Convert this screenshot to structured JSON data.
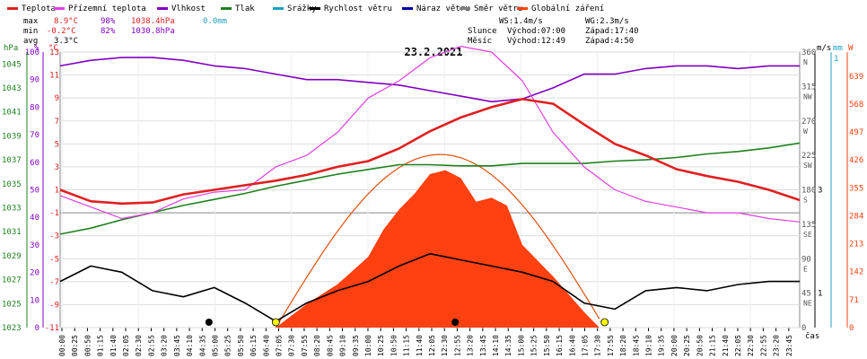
{
  "chart_data": {
    "type": "line",
    "title": "23.2.2021",
    "legend": [
      {
        "label": "Teplota",
        "color": "#e02020"
      },
      {
        "label": "Přízemní teplota",
        "color": "#e040e0"
      },
      {
        "label": "Vlhkost",
        "color": "#8000c0"
      },
      {
        "label": "Tlak",
        "color": "#208020"
      },
      {
        "label": "Srážky",
        "color": "#20a0c0"
      },
      {
        "label": "Rychlost větru",
        "color": "#000000"
      },
      {
        "label": "Náraz větru",
        "color": "#0000a0"
      },
      {
        "label": "Směr větru",
        "color": "#808080"
      },
      {
        "label": "Globální záření",
        "color": "#ff4010"
      }
    ],
    "stats": {
      "max_label": "max",
      "min_label": "min",
      "avg_label": "avg",
      "max": {
        "temp": "8.9°C",
        "hum": "98%",
        "press": "1038.4hPa",
        "rain": "0.0mm"
      },
      "min": {
        "temp": "-0.2°C",
        "hum": "82%",
        "press": "1030.8hPa"
      },
      "avg": {
        "temp": "3.3°C"
      },
      "ws": "WS:1.4m/s",
      "wg": "WG:2.3m/s",
      "sun": {
        "label": "Slunce",
        "rise": "Východ:07:00",
        "set": "Západ:17:40"
      },
      "moon": {
        "label": "Měsíc",
        "rise": "Východ:12:49",
        "set": "Západ:4:50"
      }
    },
    "axes": {
      "hPa": {
        "unit": "hPa",
        "ticks": [
          "1045",
          "1043",
          "1041",
          "1039",
          "1037",
          "1035",
          "1033",
          "1031",
          "1029",
          "1027",
          "1025",
          "1023"
        ],
        "range": [
          1023,
          1046
        ]
      },
      "pct": {
        "unit": "%",
        "ticks": [
          "100",
          "90",
          "80",
          "70",
          "60",
          "50",
          "40",
          "30",
          "20",
          "10",
          "0"
        ],
        "range": [
          0,
          100
        ]
      },
      "degC": {
        "unit": "°C",
        "ticks": [
          "13",
          "11",
          "9",
          "7",
          "5",
          "3",
          "1",
          "-1",
          "-3",
          "-5",
          "-7",
          "-9",
          "-11"
        ],
        "range": [
          -11,
          13
        ]
      },
      "dir": {
        "ticks": [
          "360",
          "315",
          "270",
          "225",
          "180",
          "135",
          "90",
          "45",
          "0"
        ],
        "letters": [
          "N",
          "NW",
          "W",
          "SW",
          "S",
          "SE",
          "E",
          "NE"
        ],
        "range": [
          0,
          360
        ]
      },
      "ms": {
        "unit": "m/s",
        "ticks": [
          "3",
          "1"
        ]
      },
      "mm": {
        "unit": "mm",
        "ticks": [
          "1"
        ]
      },
      "W": {
        "unit": "W",
        "ticks": [
          "639",
          "568",
          "497",
          "426",
          "355",
          "284",
          "213",
          "142",
          "71",
          "0"
        ],
        "range": [
          0,
          700
        ]
      },
      "x_label": "čas",
      "x_ticks": [
        "00:00",
        "00:25",
        "00:50",
        "01:15",
        "01:40",
        "02:05",
        "02:30",
        "02:55",
        "03:20",
        "03:45",
        "04:10",
        "04:35",
        "05:00",
        "05:25",
        "05:50",
        "06:15",
        "06:40",
        "07:05",
        "07:30",
        "07:55",
        "08:20",
        "08:45",
        "09:10",
        "09:35",
        "10:00",
        "10:25",
        "10:50",
        "11:15",
        "11:40",
        "12:05",
        "12:30",
        "12:55",
        "13:20",
        "13:45",
        "14:10",
        "14:35",
        "15:00",
        "15:25",
        "15:50",
        "16:15",
        "16:40",
        "17:05",
        "17:30",
        "17:55",
        "18:20",
        "18:45",
        "19:10",
        "19:35",
        "20:00",
        "20:25",
        "20:50",
        "21:15",
        "21:40",
        "22:05",
        "22:30",
        "22:55",
        "23:20",
        "23:45"
      ]
    },
    "series": [
      {
        "name": "Teplota",
        "unit": "°C",
        "x_hours": [
          0,
          1,
          2,
          3,
          4,
          5,
          6,
          7,
          8,
          9,
          10,
          11,
          12,
          13,
          14,
          15,
          16,
          17,
          18,
          19,
          20,
          21,
          22,
          23,
          24
        ],
        "values": [
          1.0,
          0.0,
          -0.2,
          -0.1,
          0.6,
          1.0,
          1.4,
          1.8,
          2.3,
          3.0,
          3.5,
          4.6,
          6.1,
          7.3,
          8.2,
          8.9,
          8.5,
          6.7,
          5.0,
          4.0,
          2.8,
          2.2,
          1.7,
          1.0,
          0.1
        ]
      },
      {
        "name": "Přízemní teplota",
        "unit": "°C",
        "x_hours": [
          0,
          1,
          2,
          3,
          4,
          5,
          6,
          7,
          8,
          9,
          10,
          11,
          12,
          13,
          14,
          15,
          16,
          17,
          18,
          19,
          20,
          21,
          22,
          23,
          24
        ],
        "values": [
          0.5,
          -0.5,
          -1.5,
          -1.0,
          0.2,
          0.8,
          1.0,
          3.0,
          4.0,
          6.0,
          9.0,
          10.5,
          12.5,
          13.5,
          13.0,
          10.5,
          6.0,
          3.0,
          1.0,
          0.0,
          -0.5,
          -1.0,
          -1.0,
          -1.5,
          -1.8
        ]
      },
      {
        "name": "Vlhkost",
        "unit": "%",
        "x_hours": [
          0,
          1,
          2,
          3,
          4,
          5,
          6,
          7,
          8,
          9,
          10,
          11,
          12,
          13,
          14,
          15,
          16,
          17,
          18,
          19,
          20,
          21,
          22,
          23,
          24
        ],
        "values": [
          95,
          97,
          98,
          98,
          97,
          95,
          94,
          92,
          90,
          90,
          89,
          88,
          86,
          84,
          82,
          83,
          87,
          92,
          92,
          94,
          95,
          95,
          94,
          95,
          95
        ]
      },
      {
        "name": "Tlak",
        "unit": "hPa",
        "x_hours": [
          0,
          1,
          2,
          3,
          4,
          5,
          6,
          7,
          8,
          9,
          10,
          11,
          12,
          13,
          14,
          15,
          16,
          17,
          18,
          19,
          20,
          21,
          22,
          23,
          24
        ],
        "values": [
          1030.8,
          1031.3,
          1032.0,
          1032.6,
          1033.2,
          1033.7,
          1034.2,
          1034.8,
          1035.3,
          1035.8,
          1036.2,
          1036.6,
          1036.6,
          1036.5,
          1036.5,
          1036.7,
          1036.7,
          1036.7,
          1036.9,
          1037.0,
          1037.2,
          1037.5,
          1037.7,
          1038.0,
          1038.4
        ]
      },
      {
        "name": "Globální záření",
        "unit": "W",
        "x_hours": [
          7.0,
          8.0,
          9.0,
          10.0,
          10.5,
          11.0,
          11.5,
          12.0,
          12.5,
          13.0,
          13.5,
          14.0,
          14.5,
          15.0,
          16.0,
          17.0,
          17.5
        ],
        "values": [
          0,
          60,
          110,
          180,
          250,
          300,
          340,
          390,
          400,
          380,
          320,
          330,
          310,
          210,
          130,
          40,
          0
        ]
      },
      {
        "name": "Rychlost větru",
        "unit": "m/s",
        "x_hours": [
          0,
          1,
          2,
          3,
          4,
          5,
          6,
          7,
          8,
          9,
          10,
          11,
          12,
          13,
          14,
          15,
          16,
          17,
          18,
          19,
          20,
          21,
          22,
          23,
          24
        ],
        "values": [
          1.5,
          2.0,
          1.8,
          1.2,
          1.0,
          1.3,
          0.8,
          0.2,
          0.8,
          1.2,
          1.5,
          2.0,
          2.4,
          2.2,
          2.0,
          1.8,
          1.5,
          0.8,
          0.6,
          1.2,
          1.3,
          1.2,
          1.4,
          1.5,
          1.5
        ]
      }
    ]
  }
}
